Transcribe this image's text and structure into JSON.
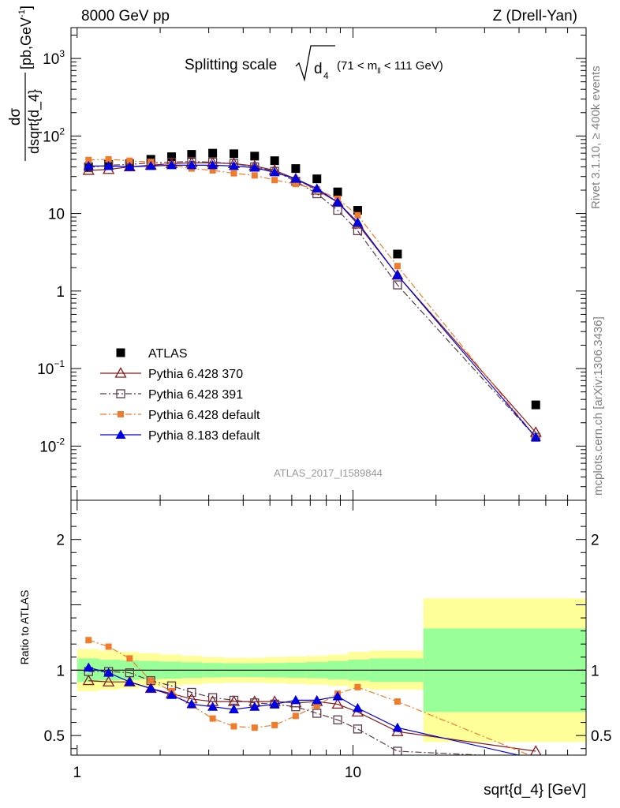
{
  "header": {
    "left": "8000 GeV pp",
    "right": "Z (Drell-Yan)",
    "side_top": "Rivet 3.1.10, ≥ 400k events",
    "side_bottom": "mcplots.cern.ch [arXiv:1306.3436]",
    "analysis_id": "ATLAS_2017_I1589844"
  },
  "plot_title": {
    "main": "Splitting scale",
    "var": "d",
    "var_sub": "4",
    "cut_pre": "(71 < m",
    "cut_sub": "ll",
    "cut_post": " < 111 GeV)"
  },
  "colors": {
    "atlas": "#000000",
    "p370": "#8b1a1a",
    "p391": "#5c3a4a",
    "p6def": "#f07b2a",
    "p8def": "#0000e0",
    "band_inner": "#99ff99",
    "band_outer": "#ffff99"
  },
  "chart_data": [
    {
      "type": "scatter",
      "scale": "log-log",
      "ylabel_num": "dσ",
      "ylabel_den": "dsqrt{d_4}",
      "ylabel_unit": "[pb,GeV",
      "ylabel_unit_sup": "-1",
      "ylabel_unit_end": "]",
      "xlim": [
        0.95,
        70
      ],
      "ylim": [
        0.002,
        2500
      ],
      "y_ticks": [
        {
          "value": 0.01,
          "base": "10",
          "exp": "-2"
        },
        {
          "value": 0.1,
          "base": "10",
          "exp": "−1"
        },
        {
          "value": 1,
          "base": "1",
          "exp": ""
        },
        {
          "value": 10,
          "base": "10",
          "exp": ""
        },
        {
          "value": 100,
          "base": "10",
          "exp": "2"
        },
        {
          "value": 1000,
          "base": "10",
          "exp": "3"
        }
      ],
      "x": [
        1.1,
        1.3,
        1.55,
        1.85,
        2.2,
        2.6,
        3.1,
        3.7,
        4.4,
        5.2,
        6.2,
        7.4,
        8.8,
        10.4,
        14.5,
        46
      ],
      "series": [
        {
          "name": "ATLAS",
          "key": "atlas",
          "marker": "square-filled",
          "line": "none",
          "values": [
            40,
            43,
            44,
            50,
            54,
            58,
            60,
            59,
            55,
            48,
            38,
            28,
            19,
            11,
            3.0,
            0.034
          ]
        },
        {
          "name": "Pythia 6.428 370",
          "key": "p370",
          "marker": "triangle-open",
          "line": "solid",
          "values": [
            36,
            37,
            40,
            42,
            44,
            45,
            45,
            44,
            41,
            36,
            28,
            20,
            14,
            7.3,
            1.6,
            0.015
          ]
        },
        {
          "name": "Pythia 6.428 391",
          "key": "p391",
          "marker": "square-open",
          "line": "dashdot",
          "values": [
            39,
            42,
            43,
            45,
            46,
            47,
            46,
            44,
            40,
            35,
            26,
            18,
            11,
            6.0,
            1.2,
            0.013
          ]
        },
        {
          "name": "Pythia 6.428 default",
          "key": "p6def",
          "marker": "square-filled-small",
          "line": "dashdot",
          "values": [
            49,
            50,
            48,
            46,
            42,
            38,
            36,
            33,
            31,
            27,
            24,
            20.5,
            15.5,
            9.5,
            2.1,
            0.013
          ]
        },
        {
          "name": "Pythia 8.183 default",
          "key": "p8def",
          "marker": "triangle-filled",
          "line": "solid",
          "values": [
            41,
            41,
            40,
            41,
            42,
            42,
            42,
            41,
            39,
            34,
            28,
            21,
            14,
            7.7,
            1.6,
            0.013
          ]
        }
      ]
    },
    {
      "type": "line",
      "scale": "log-x",
      "ylabel": "Ratio to ATLAS",
      "xlabel": "sqrt{d_4} [GeV]",
      "xlim": [
        0.95,
        70
      ],
      "ylim": [
        0.35,
        2.3
      ],
      "x_ticks": [
        {
          "value": 1,
          "label": "1"
        },
        {
          "value": 10,
          "label": "10"
        }
      ],
      "y_ticks": [
        {
          "value": 0.5,
          "label": "0.5"
        },
        {
          "value": 1,
          "label": "1"
        },
        {
          "value": 2,
          "label": "2"
        }
      ],
      "bands": {
        "edges": [
          1,
          1.2,
          1.42,
          1.68,
          2.0,
          2.4,
          2.85,
          3.4,
          4.05,
          4.8,
          5.7,
          6.8,
          8.1,
          9.6,
          11.5,
          18,
          70
        ],
        "inner": [
          0.09,
          0.08,
          0.075,
          0.07,
          0.065,
          0.06,
          0.055,
          0.052,
          0.052,
          0.055,
          0.058,
          0.062,
          0.07,
          0.08,
          0.09,
          0.32
        ],
        "outer": [
          0.16,
          0.15,
          0.14,
          0.13,
          0.12,
          0.11,
          0.1,
          0.095,
          0.095,
          0.1,
          0.105,
          0.11,
          0.12,
          0.14,
          0.15,
          0.55
        ]
      },
      "series": [
        {
          "name": "Pythia 6.428 370",
          "key": "p370",
          "marker": "triangle-open",
          "line": "solid",
          "values": [
            0.92,
            0.91,
            0.91,
            0.86,
            0.82,
            0.78,
            0.76,
            0.76,
            0.76,
            0.76,
            0.75,
            0.76,
            0.74,
            0.68,
            0.53,
            0.38
          ]
        },
        {
          "name": "Pythia 6.428 391",
          "key": "p391",
          "marker": "square-open",
          "line": "dashdot",
          "values": [
            0.99,
            0.99,
            0.98,
            0.92,
            0.88,
            0.83,
            0.79,
            0.77,
            0.75,
            0.74,
            0.72,
            0.67,
            0.62,
            0.55,
            0.38,
            0.33
          ]
        },
        {
          "name": "Pythia 6.428 default",
          "key": "p6def",
          "marker": "square-filled-small",
          "line": "dashdot",
          "values": [
            1.23,
            1.18,
            1.09,
            0.92,
            0.84,
            0.73,
            0.63,
            0.57,
            0.56,
            0.58,
            0.65,
            0.73,
            0.82,
            0.87,
            0.76,
            0.33
          ]
        },
        {
          "name": "Pythia 8.183 default",
          "key": "p8def",
          "marker": "triangle-filled",
          "line": "solid",
          "values": [
            1.02,
            0.98,
            0.91,
            0.86,
            0.81,
            0.74,
            0.72,
            0.7,
            0.72,
            0.74,
            0.77,
            0.77,
            0.8,
            0.71,
            0.56,
            0.32
          ]
        }
      ]
    }
  ]
}
